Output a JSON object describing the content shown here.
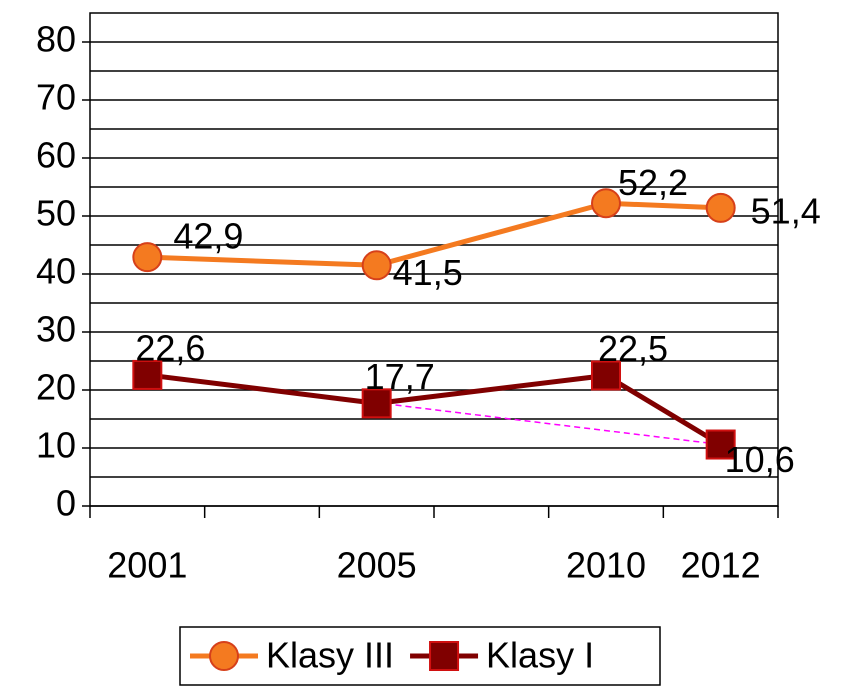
{
  "chart_data": {
    "type": "line",
    "categories": [
      "2001",
      null,
      "2005",
      null,
      "2010",
      "2012"
    ],
    "series": [
      {
        "name": "Klasy III",
        "color": "#f47a20",
        "marker": "circle",
        "marker_edge": "#d6401a",
        "values": [
          42.9,
          null,
          41.5,
          null,
          52.2,
          51.4
        ],
        "value_labels": [
          "42,9",
          null,
          "41,5",
          null,
          "52,2",
          "51,4"
        ]
      },
      {
        "name": "Klasy I",
        "color": "#800000",
        "marker": "square",
        "marker_edge": "#d01010",
        "values": [
          22.6,
          null,
          17.7,
          null,
          22.5,
          10.6
        ],
        "value_labels": [
          "22,6",
          null,
          "17,7",
          null,
          "22,5",
          "10,6"
        ]
      }
    ],
    "trend_line": {
      "series": 1,
      "color": "#ff00ff"
    },
    "ylim": [
      0,
      85
    ],
    "yticks": [
      0,
      10,
      20,
      30,
      40,
      50,
      60,
      70,
      80
    ],
    "minor_gridlines": [
      5,
      15,
      25,
      35,
      45,
      55,
      65,
      75
    ],
    "grid": true,
    "connect_gaps": true,
    "legend": "bottom"
  }
}
